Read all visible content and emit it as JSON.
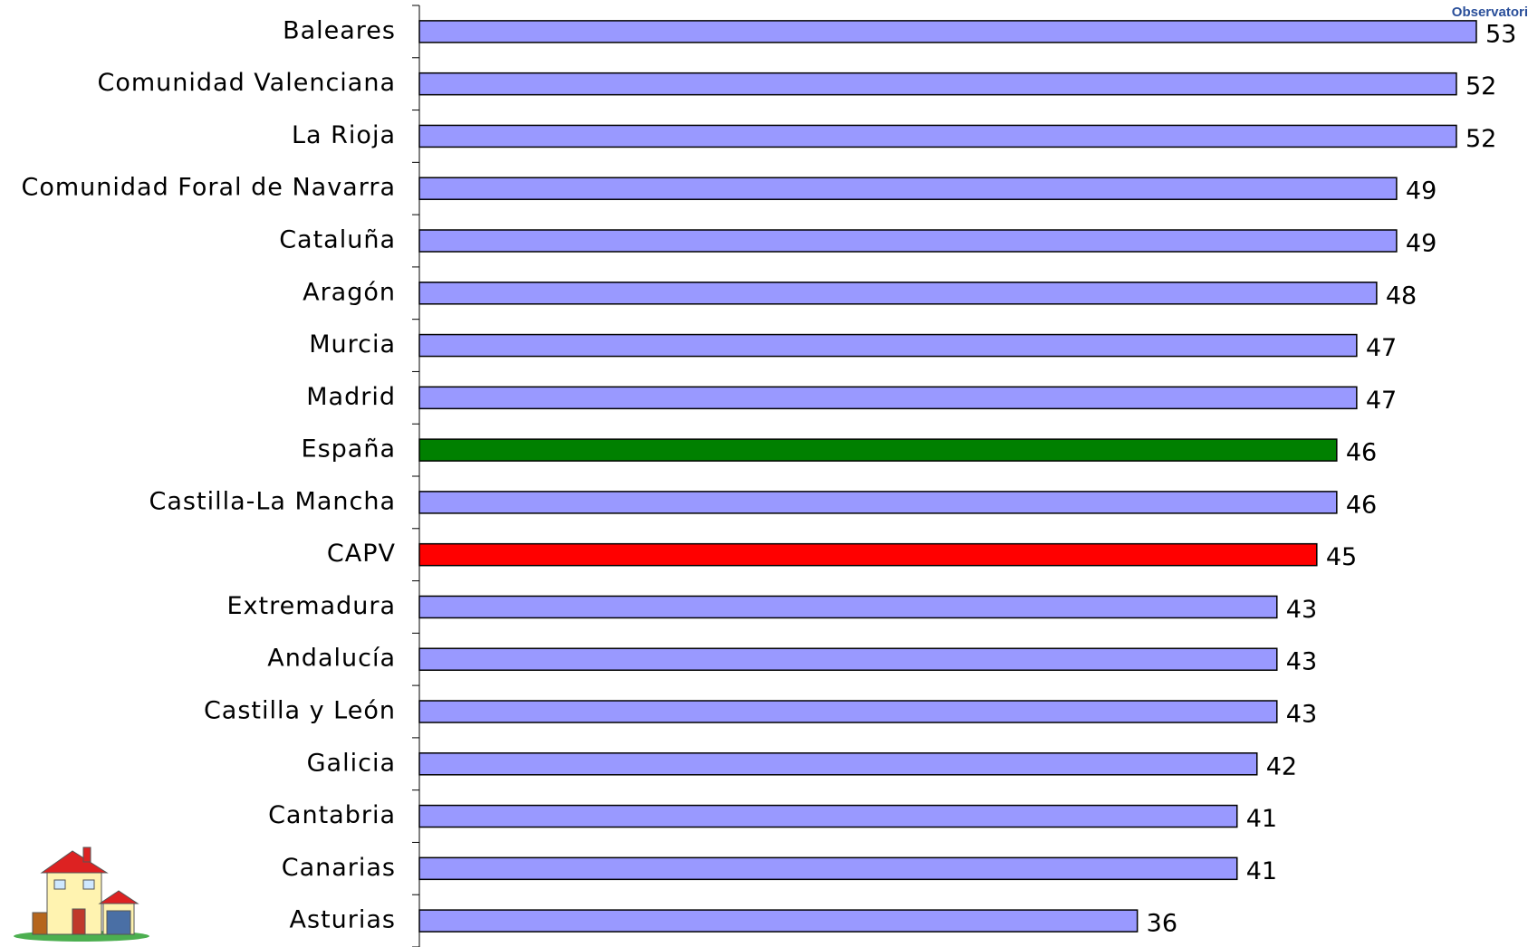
{
  "logo": "Observatori",
  "chart_data": {
    "type": "hbar",
    "categories": [
      "Baleares",
      "Comunidad Valenciana",
      "La Rioja",
      "Comunidad Foral de Navarra",
      "Cataluña",
      "Aragón",
      "Murcia",
      "Madrid",
      "España",
      "Castilla-La Mancha",
      "CAPV",
      "Extremadura",
      "Andalucía",
      "Castilla y León",
      "Galicia",
      "Cantabria",
      "Canarias",
      "Asturias"
    ],
    "values": [
      53,
      52,
      52,
      49,
      49,
      48,
      47,
      47,
      46,
      46,
      45,
      43,
      43,
      43,
      42,
      41,
      41,
      36
    ],
    "colors": [
      "#9999ff",
      "#9999ff",
      "#9999ff",
      "#9999ff",
      "#9999ff",
      "#9999ff",
      "#9999ff",
      "#9999ff",
      "#008000",
      "#9999ff",
      "#ff0000",
      "#9999ff",
      "#9999ff",
      "#9999ff",
      "#9999ff",
      "#9999ff",
      "#9999ff",
      "#9999ff"
    ],
    "xlim": [
      0,
      55
    ]
  }
}
